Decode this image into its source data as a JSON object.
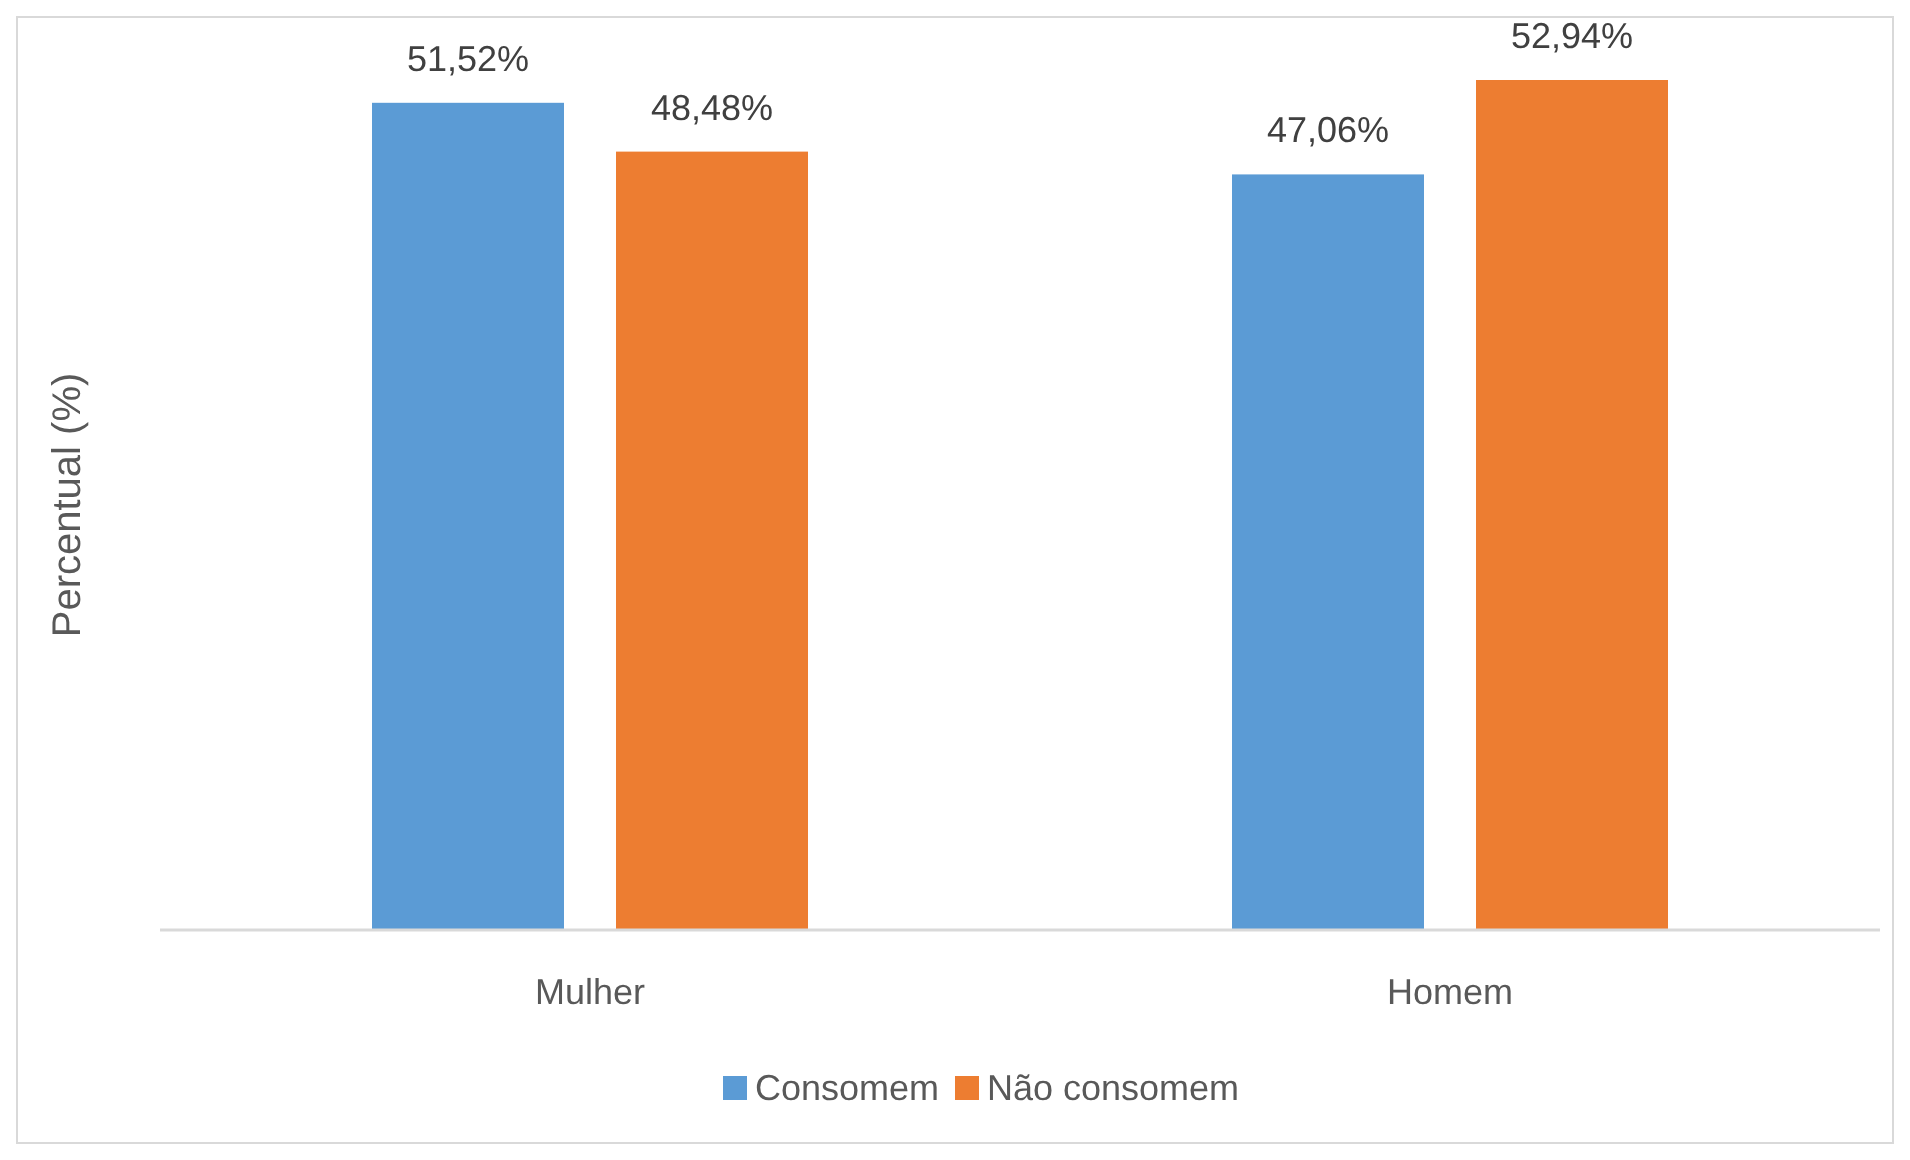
{
  "chart_data": {
    "type": "bar",
    "ylabel": "Percentual (%)",
    "categories": [
      "Mulher",
      "Homem"
    ],
    "series": [
      {
        "name": "Consomem",
        "color": "#5b9bd5",
        "values": [
          51.52,
          47.06
        ],
        "value_labels": [
          "51,52%",
          "47,06%"
        ]
      },
      {
        "name": "Não consomem",
        "color": "#ed7d31",
        "values": [
          48.48,
          52.94
        ],
        "value_labels": [
          "48,48%",
          "52,94%"
        ]
      }
    ],
    "tick_labels": "x",
    "legend": "bottom"
  }
}
